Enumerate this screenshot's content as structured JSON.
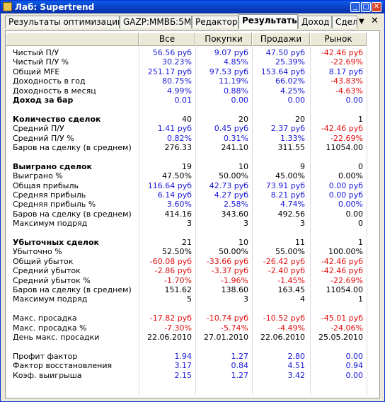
{
  "window": {
    "title": "Лаб: Supertrend"
  },
  "tabs": [
    {
      "label": "Результаты оптимизации",
      "active": false
    },
    {
      "label": "GAZP:MMBБ:5M",
      "active": false
    },
    {
      "label": "Редактор",
      "active": false
    },
    {
      "label": "Результаты",
      "active": true
    },
    {
      "label": "Доход",
      "active": false
    },
    {
      "label": "Сдел",
      "active": false
    }
  ],
  "tab_controls": {
    "arrow": "▼",
    "close": "✕"
  },
  "columns": [
    "Все",
    "Покупки",
    "Продажи",
    "Рынок"
  ],
  "rows": [
    {
      "label": "Чистый П/У",
      "bold": false,
      "values": [
        "56.56 руб",
        "9.07 руб",
        "47.50 руб",
        "-42.46 руб"
      ],
      "colors": [
        "blue",
        "blue",
        "blue",
        "red"
      ]
    },
    {
      "label": "Чистый П/У %",
      "bold": false,
      "values": [
        "30.23%",
        "4.85%",
        "25.39%",
        "-22.69%"
      ],
      "colors": [
        "blue",
        "blue",
        "blue",
        "red"
      ]
    },
    {
      "label": "Общий MFE",
      "bold": false,
      "values": [
        "251.17 руб",
        "97.53 руб",
        "153.64 руб",
        "8.17 руб"
      ],
      "colors": [
        "blue",
        "blue",
        "blue",
        "blue"
      ]
    },
    {
      "label": "Доходность в год",
      "bold": false,
      "values": [
        "80.75%",
        "11.19%",
        "66.02%",
        "-43.83%"
      ],
      "colors": [
        "blue",
        "blue",
        "blue",
        "red"
      ]
    },
    {
      "label": "Доходность в месяц",
      "bold": false,
      "values": [
        "4.99%",
        "0.88%",
        "4.25%",
        "-4.63%"
      ],
      "colors": [
        "blue",
        "blue",
        "blue",
        "red"
      ]
    },
    {
      "label": "Доход за бар",
      "bold": true,
      "values": [
        "0.01",
        "0.00",
        "0.00",
        "0.00"
      ],
      "colors": [
        "blue",
        "blue",
        "blue",
        "blue"
      ]
    },
    {
      "label": "",
      "bold": false,
      "values": [
        "",
        "",
        "",
        ""
      ],
      "colors": [
        "black",
        "black",
        "black",
        "black"
      ]
    },
    {
      "label": "Количество сделок",
      "bold": true,
      "values": [
        "40",
        "20",
        "20",
        "1"
      ],
      "colors": [
        "black",
        "black",
        "black",
        "black"
      ]
    },
    {
      "label": "Средний П/У",
      "bold": false,
      "values": [
        "1.41 руб",
        "0.45 руб",
        "2.37 руб",
        "-42.46 руб"
      ],
      "colors": [
        "blue",
        "blue",
        "blue",
        "red"
      ]
    },
    {
      "label": "Средний П/У %",
      "bold": false,
      "values": [
        "0.82%",
        "0.31%",
        "1.33%",
        "-22.69%"
      ],
      "colors": [
        "blue",
        "blue",
        "blue",
        "red"
      ]
    },
    {
      "label": "Баров на сделку (в среднем)",
      "bold": false,
      "values": [
        "276.33",
        "241.10",
        "311.55",
        "11054.00"
      ],
      "colors": [
        "black",
        "black",
        "black",
        "black"
      ]
    },
    {
      "label": "",
      "bold": false,
      "values": [
        "",
        "",
        "",
        ""
      ],
      "colors": [
        "black",
        "black",
        "black",
        "black"
      ]
    },
    {
      "label": "Выиграно сделок",
      "bold": true,
      "values": [
        "19",
        "10",
        "9",
        "0"
      ],
      "colors": [
        "black",
        "black",
        "black",
        "black"
      ]
    },
    {
      "label": "Выиграно %",
      "bold": false,
      "values": [
        "47.50%",
        "50.00%",
        "45.00%",
        "0.00%"
      ],
      "colors": [
        "black",
        "black",
        "black",
        "black"
      ]
    },
    {
      "label": "Общая прибыль",
      "bold": false,
      "values": [
        "116.64 руб",
        "42.73 руб",
        "73.91 руб",
        "0.00 руб"
      ],
      "colors": [
        "blue",
        "blue",
        "blue",
        "blue"
      ]
    },
    {
      "label": "Средняя прибыль",
      "bold": false,
      "values": [
        "6.14 руб",
        "4.27 руб",
        "8.21 руб",
        "0.00 руб"
      ],
      "colors": [
        "blue",
        "blue",
        "blue",
        "blue"
      ]
    },
    {
      "label": "Средняя прибыль %",
      "bold": false,
      "values": [
        "3.60%",
        "2.58%",
        "4.74%",
        "0.00%"
      ],
      "colors": [
        "blue",
        "blue",
        "blue",
        "blue"
      ]
    },
    {
      "label": "Баров на сделку (в среднем)",
      "bold": false,
      "values": [
        "414.16",
        "343.60",
        "492.56",
        "0.00"
      ],
      "colors": [
        "black",
        "black",
        "black",
        "black"
      ]
    },
    {
      "label": "Максимум подряд",
      "bold": false,
      "values": [
        "3",
        "3",
        "3",
        "0"
      ],
      "colors": [
        "black",
        "black",
        "black",
        "black"
      ]
    },
    {
      "label": "",
      "bold": false,
      "values": [
        "",
        "",
        "",
        ""
      ],
      "colors": [
        "black",
        "black",
        "black",
        "black"
      ]
    },
    {
      "label": "Убыточных сделок",
      "bold": true,
      "values": [
        "21",
        "10",
        "11",
        "1"
      ],
      "colors": [
        "black",
        "black",
        "black",
        "black"
      ]
    },
    {
      "label": "Убыточно %",
      "bold": false,
      "values": [
        "52.50%",
        "50.00%",
        "55.00%",
        "100.00%"
      ],
      "colors": [
        "black",
        "black",
        "black",
        "black"
      ]
    },
    {
      "label": "Общий убыток",
      "bold": false,
      "values": [
        "-60.08 руб",
        "-33.66 руб",
        "-26.42 руб",
        "-42.46 руб"
      ],
      "colors": [
        "red",
        "red",
        "red",
        "red"
      ]
    },
    {
      "label": "Средний убыток",
      "bold": false,
      "values": [
        "-2.86 руб",
        "-3.37 руб",
        "-2.40 руб",
        "-42.46 руб"
      ],
      "colors": [
        "red",
        "red",
        "red",
        "red"
      ]
    },
    {
      "label": "Средний убыток %",
      "bold": false,
      "values": [
        "-1.70%",
        "-1.96%",
        "-1.45%",
        "-22.69%"
      ],
      "colors": [
        "red",
        "red",
        "red",
        "red"
      ]
    },
    {
      "label": "Баров на сделку (в среднем)",
      "bold": false,
      "values": [
        "151.62",
        "138.60",
        "163.45",
        "11054.00"
      ],
      "colors": [
        "black",
        "black",
        "black",
        "black"
      ]
    },
    {
      "label": "Максимум подряд",
      "bold": false,
      "values": [
        "5",
        "3",
        "4",
        "1"
      ],
      "colors": [
        "black",
        "black",
        "black",
        "black"
      ]
    },
    {
      "label": "",
      "bold": false,
      "values": [
        "",
        "",
        "",
        ""
      ],
      "colors": [
        "black",
        "black",
        "black",
        "black"
      ]
    },
    {
      "label": "Макс. просадка",
      "bold": false,
      "values": [
        "-17.82 руб",
        "-10.74 руб",
        "-10.52 руб",
        "-45.01 руб"
      ],
      "colors": [
        "red",
        "red",
        "red",
        "red"
      ]
    },
    {
      "label": "Макс. просадка %",
      "bold": false,
      "values": [
        "-7.30%",
        "-5.74%",
        "-4.49%",
        "-24.06%"
      ],
      "colors": [
        "red",
        "red",
        "red",
        "red"
      ]
    },
    {
      "label": "День макс. просадки",
      "bold": false,
      "values": [
        "22.06.2010",
        "27.01.2010",
        "22.06.2010",
        "25.05.2010"
      ],
      "colors": [
        "black",
        "black",
        "black",
        "black"
      ]
    },
    {
      "label": "",
      "bold": false,
      "values": [
        "",
        "",
        "",
        ""
      ],
      "colors": [
        "black",
        "black",
        "black",
        "black"
      ]
    },
    {
      "label": "Профит фактор",
      "bold": false,
      "values": [
        "1.94",
        "1.27",
        "2.80",
        "0.00"
      ],
      "colors": [
        "blue",
        "blue",
        "blue",
        "blue"
      ]
    },
    {
      "label": "Фактор восстановления",
      "bold": false,
      "values": [
        "3.17",
        "0.84",
        "4.51",
        "0.94"
      ],
      "colors": [
        "blue",
        "blue",
        "blue",
        "blue"
      ]
    },
    {
      "label": "Коэф. выигрыша",
      "bold": false,
      "values": [
        "2.15",
        "1.27",
        "3.42",
        "0.00"
      ],
      "colors": [
        "blue",
        "blue",
        "blue",
        "blue"
      ]
    }
  ]
}
